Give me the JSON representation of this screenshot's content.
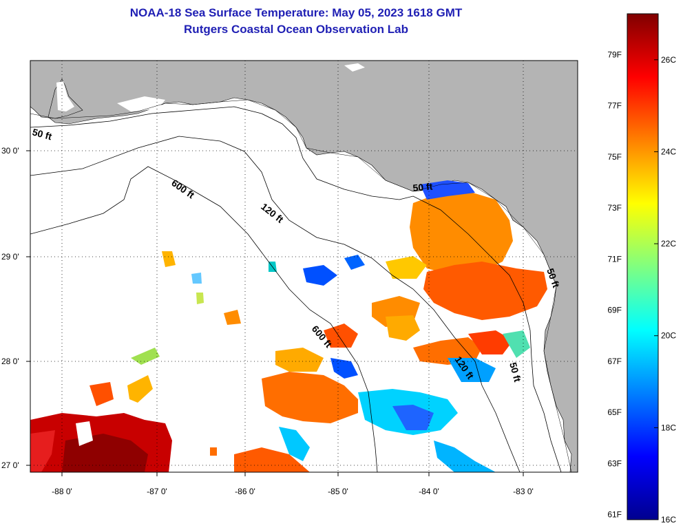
{
  "title_line1": "NOAA-18 Sea Surface Temperature:  May 05, 2023 1618 GMT",
  "title_line2": "Rutgers Coastal Ocean Observation Lab",
  "map": {
    "lon_labels": [
      "-88 0'",
      "-87 0'",
      "-86 0'",
      "-85 0'",
      "-84 0'",
      "-83 0'"
    ],
    "lat_labels": [
      "30 0'",
      "29 0'",
      "28 0'",
      "27 0'"
    ],
    "contour_labels": [
      "50 ft",
      "600 ft",
      "120 ft",
      "50 ft",
      "600 ft",
      "120 ft",
      "50 ft",
      "50 ft"
    ],
    "land_color": "#b4b4b4",
    "ocean_color": "#ffffff"
  },
  "colorbar": {
    "fahrenheit_labels": [
      "79F",
      "77F",
      "75F",
      "73F",
      "71F",
      "69F",
      "67F",
      "65F",
      "63F",
      "61F"
    ],
    "celsius_labels": [
      "26C",
      "24C",
      "22C",
      "20C",
      "18C",
      "16C"
    ],
    "min_c": 16,
    "max_c": 27,
    "colormap": [
      "#00008f",
      "#0000ff",
      "#0080ff",
      "#00ffff",
      "#80ff80",
      "#ffff00",
      "#ff8000",
      "#ff0000",
      "#800000"
    ]
  }
}
